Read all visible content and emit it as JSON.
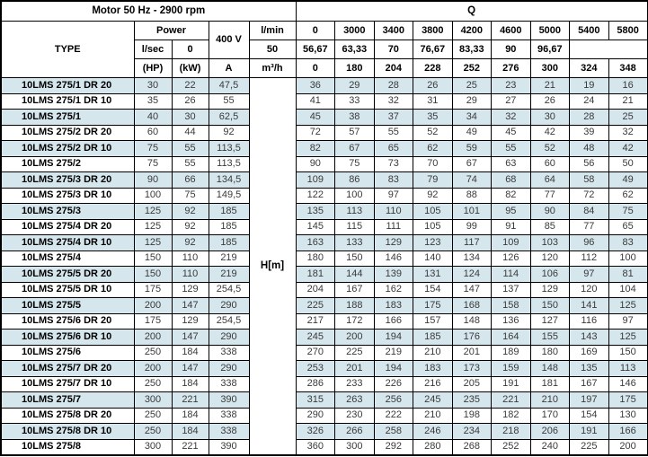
{
  "header": {
    "motor_title": "Motor 50 Hz - 2900 rpm",
    "q_title": "Q",
    "type_label": "TYPE",
    "power_label": "Power",
    "voltage_label": "400 V",
    "hp_label": "(HP)",
    "kw_label": "(kW)",
    "amp_label": "A",
    "flow_units": [
      "l/min",
      "l/sec",
      "m³/h"
    ],
    "flow_lmin": [
      "0",
      "3000",
      "3400",
      "3800",
      "4200",
      "4600",
      "5000",
      "5400",
      "5800"
    ],
    "flow_lsec": [
      "0",
      "50",
      "56,67",
      "63,33",
      "70",
      "76,67",
      "83,33",
      "90",
      "96,67"
    ],
    "flow_m3h": [
      "0",
      "180",
      "204",
      "228",
      "252",
      "276",
      "300",
      "324",
      "348"
    ]
  },
  "head_unit_label": "H[m]",
  "rows": [
    {
      "type": "10LMS 275/1 DR 20",
      "hp": "30",
      "kw": "22",
      "amp": "47,5",
      "head": [
        "36",
        "29",
        "28",
        "26",
        "25",
        "23",
        "21",
        "19",
        "16"
      ]
    },
    {
      "type": "10LMS 275/1 DR 10",
      "hp": "35",
      "kw": "26",
      "amp": "55",
      "head": [
        "41",
        "33",
        "32",
        "31",
        "29",
        "27",
        "26",
        "24",
        "21"
      ]
    },
    {
      "type": "10LMS 275/1",
      "hp": "40",
      "kw": "30",
      "amp": "62,5",
      "head": [
        "45",
        "38",
        "37",
        "35",
        "34",
        "32",
        "30",
        "28",
        "25"
      ]
    },
    {
      "type": "10LMS 275/2 DR 20",
      "hp": "60",
      "kw": "44",
      "amp": "92",
      "head": [
        "72",
        "57",
        "55",
        "52",
        "49",
        "45",
        "42",
        "39",
        "32"
      ]
    },
    {
      "type": "10LMS 275/2 DR 10",
      "hp": "75",
      "kw": "55",
      "amp": "113,5",
      "head": [
        "82",
        "67",
        "65",
        "62",
        "59",
        "55",
        "52",
        "48",
        "42"
      ]
    },
    {
      "type": "10LMS 275/2",
      "hp": "75",
      "kw": "55",
      "amp": "113,5",
      "head": [
        "90",
        "75",
        "73",
        "70",
        "67",
        "63",
        "60",
        "56",
        "50"
      ]
    },
    {
      "type": "10LMS 275/3 DR 20",
      "hp": "90",
      "kw": "66",
      "amp": "134,5",
      "head": [
        "109",
        "86",
        "83",
        "79",
        "74",
        "68",
        "64",
        "58",
        "49"
      ]
    },
    {
      "type": "10LMS 275/3 DR 10",
      "hp": "100",
      "kw": "75",
      "amp": "149,5",
      "head": [
        "122",
        "100",
        "97",
        "92",
        "88",
        "82",
        "77",
        "72",
        "62"
      ]
    },
    {
      "type": "10LMS 275/3",
      "hp": "125",
      "kw": "92",
      "amp": "185",
      "head": [
        "135",
        "113",
        "110",
        "105",
        "101",
        "95",
        "90",
        "84",
        "75"
      ]
    },
    {
      "type": "10LMS 275/4 DR 20",
      "hp": "125",
      "kw": "92",
      "amp": "185",
      "head": [
        "145",
        "115",
        "111",
        "105",
        "99",
        "91",
        "85",
        "77",
        "65"
      ]
    },
    {
      "type": "10LMS 275/4 DR 10",
      "hp": "125",
      "kw": "92",
      "amp": "185",
      "head": [
        "163",
        "133",
        "129",
        "123",
        "117",
        "109",
        "103",
        "96",
        "83"
      ]
    },
    {
      "type": "10LMS 275/4",
      "hp": "150",
      "kw": "110",
      "amp": "219",
      "head": [
        "180",
        "150",
        "146",
        "140",
        "134",
        "126",
        "120",
        "112",
        "100"
      ]
    },
    {
      "type": "10LMS 275/5 DR 20",
      "hp": "150",
      "kw": "110",
      "amp": "219",
      "head": [
        "181",
        "144",
        "139",
        "131",
        "124",
        "114",
        "106",
        "97",
        "81"
      ]
    },
    {
      "type": "10LMS 275/5 DR 10",
      "hp": "175",
      "kw": "129",
      "amp": "254,5",
      "head": [
        "204",
        "167",
        "162",
        "154",
        "147",
        "137",
        "129",
        "120",
        "104"
      ]
    },
    {
      "type": "10LMS 275/5",
      "hp": "200",
      "kw": "147",
      "amp": "290",
      "head": [
        "225",
        "188",
        "183",
        "175",
        "168",
        "158",
        "150",
        "141",
        "125"
      ]
    },
    {
      "type": "10LMS 275/6 DR 20",
      "hp": "175",
      "kw": "129",
      "amp": "254,5",
      "head": [
        "217",
        "172",
        "166",
        "157",
        "148",
        "136",
        "127",
        "116",
        "97"
      ]
    },
    {
      "type": "10LMS 275/6 DR 10",
      "hp": "200",
      "kw": "147",
      "amp": "290",
      "head": [
        "245",
        "200",
        "194",
        "185",
        "176",
        "164",
        "155",
        "143",
        "125"
      ]
    },
    {
      "type": "10LMS 275/6",
      "hp": "250",
      "kw": "184",
      "amp": "338",
      "head": [
        "270",
        "225",
        "219",
        "210",
        "201",
        "189",
        "180",
        "169",
        "150"
      ]
    },
    {
      "type": "10LMS 275/7 DR 20",
      "hp": "200",
      "kw": "147",
      "amp": "290",
      "head": [
        "253",
        "201",
        "194",
        "183",
        "173",
        "159",
        "148",
        "135",
        "113"
      ]
    },
    {
      "type": "10LMS 275/7 DR 10",
      "hp": "250",
      "kw": "184",
      "amp": "338",
      "head": [
        "286",
        "233",
        "226",
        "216",
        "205",
        "191",
        "181",
        "167",
        "146"
      ]
    },
    {
      "type": "10LMS 275/7",
      "hp": "300",
      "kw": "221",
      "amp": "390",
      "head": [
        "315",
        "263",
        "256",
        "245",
        "235",
        "221",
        "210",
        "197",
        "175"
      ]
    },
    {
      "type": "10LMS 275/8 DR 20",
      "hp": "250",
      "kw": "184",
      "amp": "338",
      "head": [
        "290",
        "230",
        "222",
        "210",
        "198",
        "182",
        "170",
        "154",
        "130"
      ]
    },
    {
      "type": "10LMS 275/8 DR 10",
      "hp": "250",
      "kw": "184",
      "amp": "338",
      "head": [
        "326",
        "266",
        "258",
        "246",
        "234",
        "218",
        "206",
        "191",
        "166"
      ]
    },
    {
      "type": "10LMS 275/8",
      "hp": "300",
      "kw": "221",
      "amp": "390",
      "head": [
        "360",
        "300",
        "292",
        "280",
        "268",
        "252",
        "240",
        "225",
        "200"
      ]
    }
  ],
  "colors": {
    "row_shade": "#d5e6ed",
    "border": "#000000",
    "data_text": "#3a3a3a"
  }
}
